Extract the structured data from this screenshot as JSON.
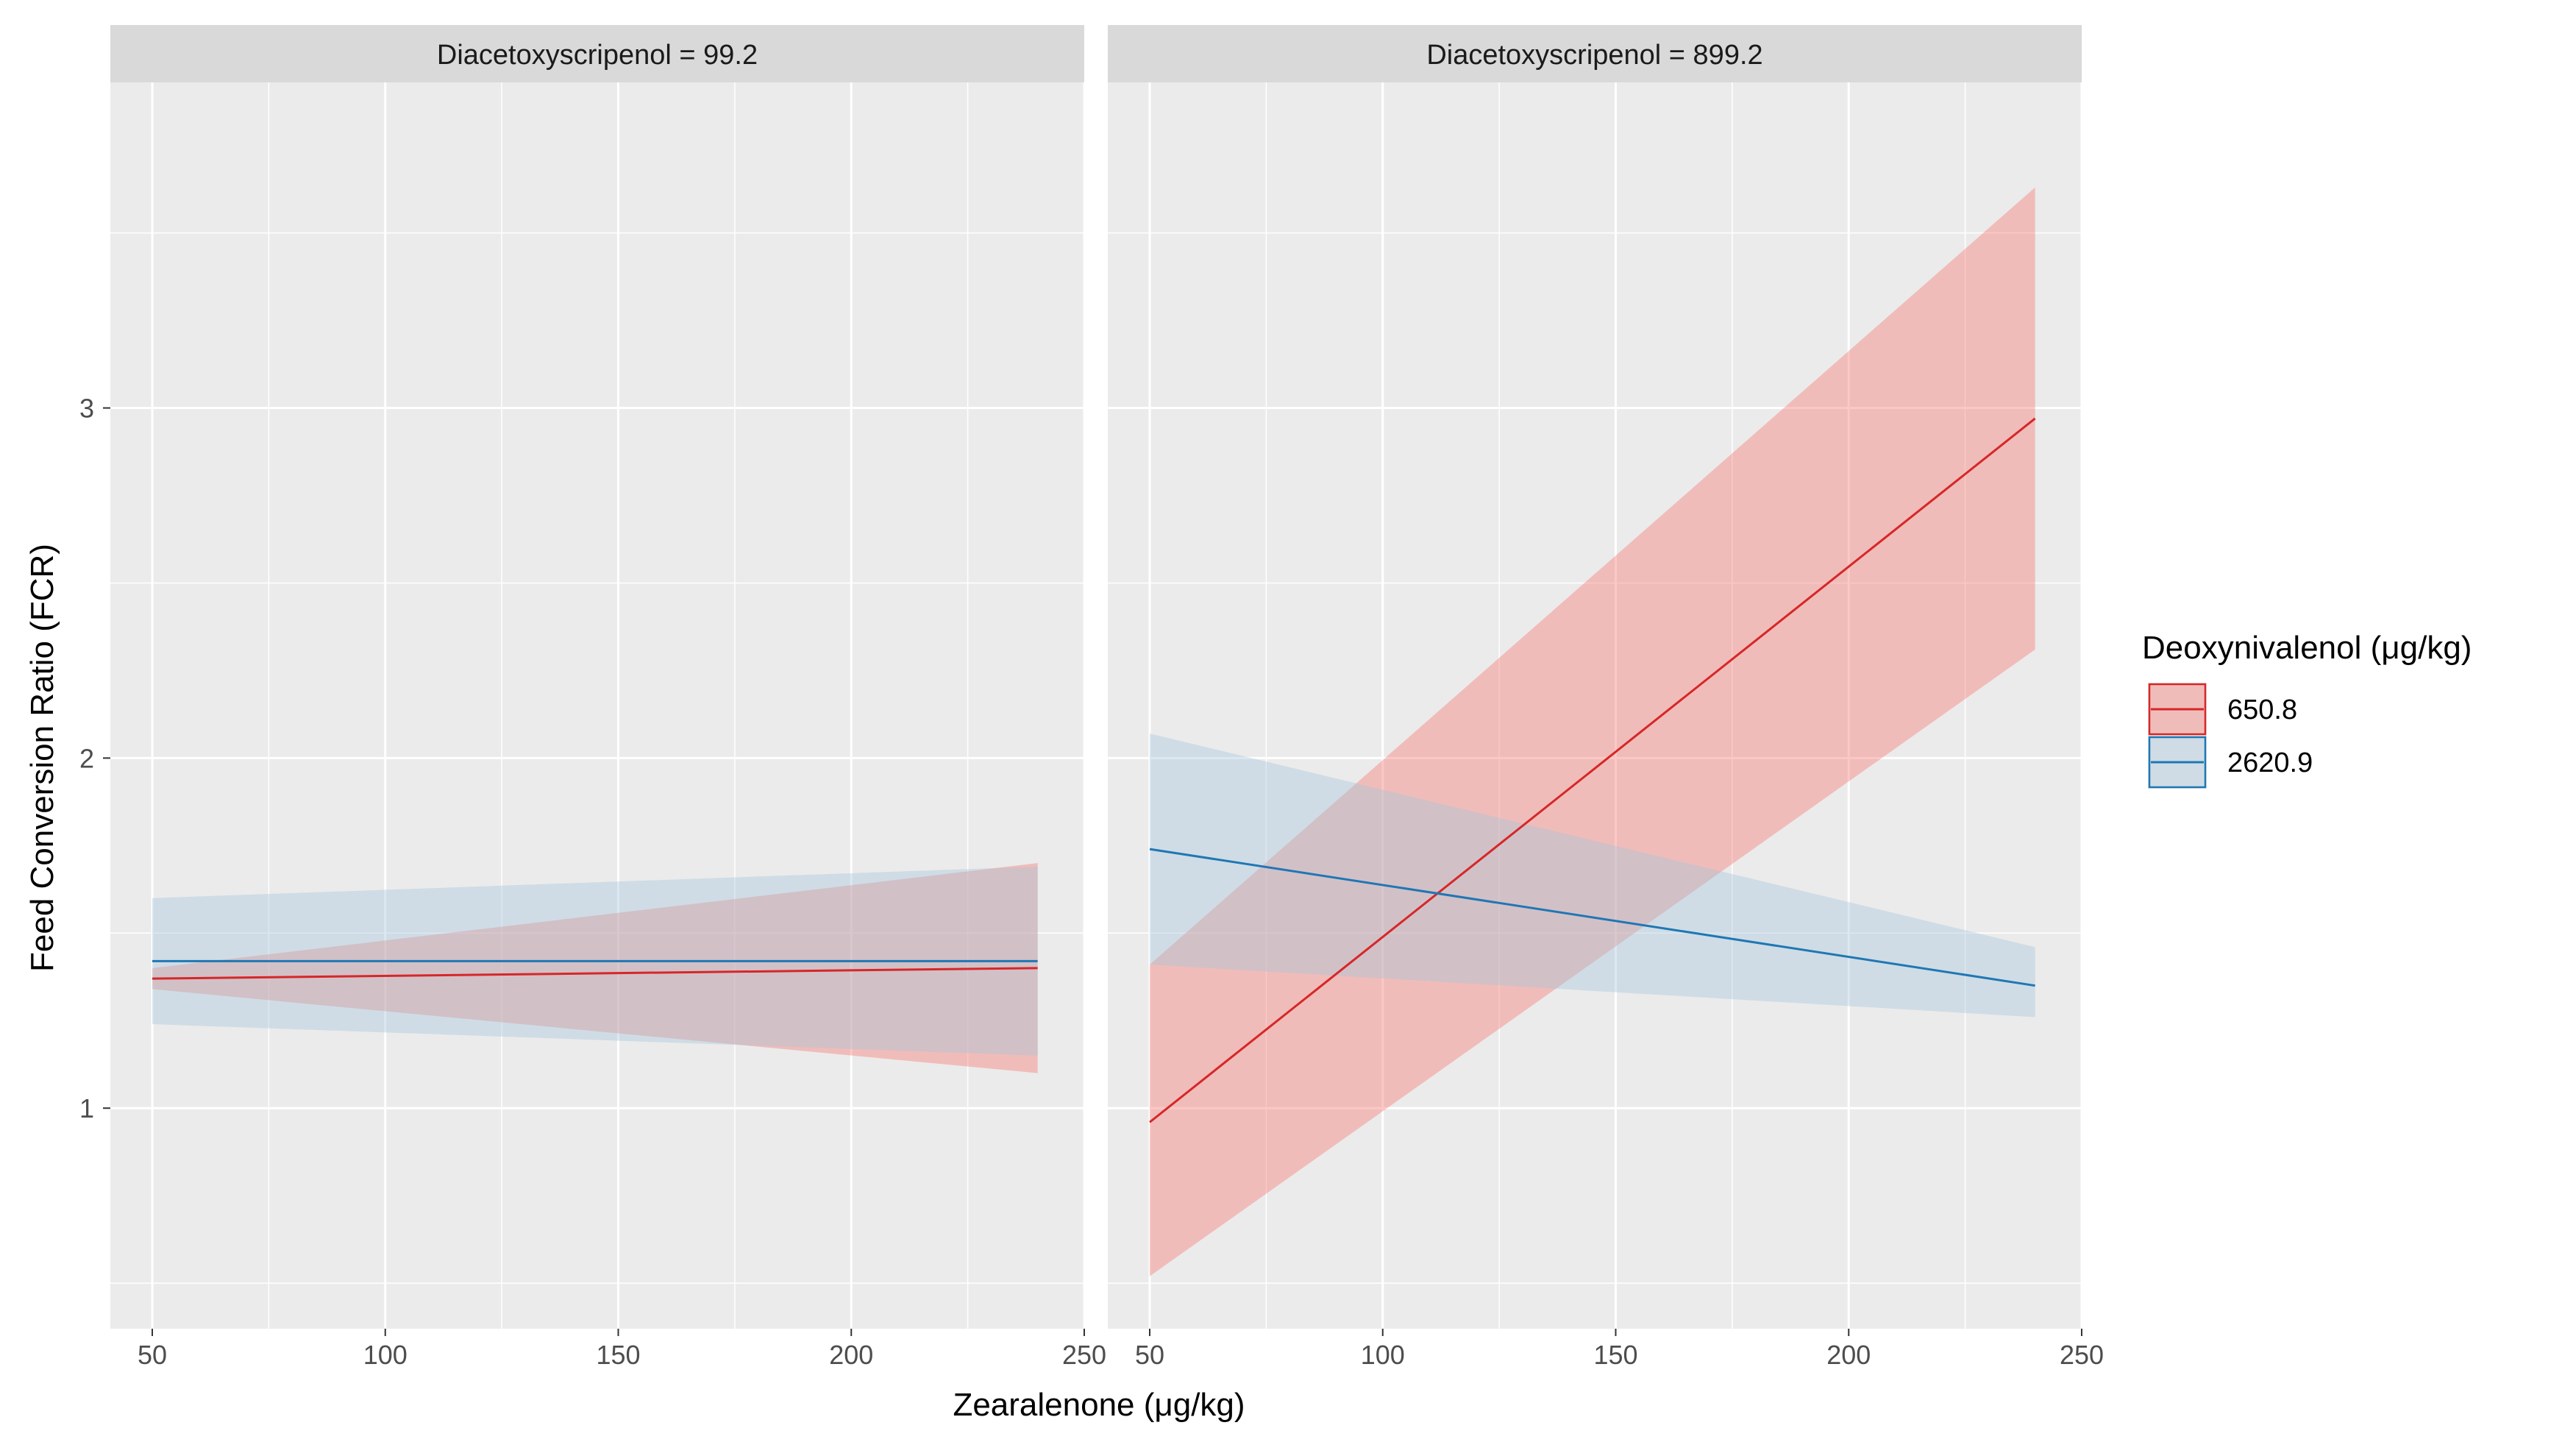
{
  "chart_data": {
    "type": "line",
    "xlabel": "Zearalenone (μg/kg)",
    "ylabel": "Feed Conversion Ratio (FCR)",
    "xlim": [
      41,
      250
    ],
    "ylim": [
      0.37,
      3.93
    ],
    "x_ticks": [
      50,
      100,
      150,
      200,
      250
    ],
    "x_tick_labels": [
      "50",
      "100",
      "150",
      "200",
      "250"
    ],
    "y_ticks": [
      1,
      2,
      3
    ],
    "y_tick_labels": [
      "1",
      "2",
      "3"
    ],
    "legend": {
      "title": "Deoxynivalenol (μg/kg)",
      "placement": "right",
      "entries": [
        {
          "label": "650.8",
          "color": "#d62728",
          "fill": "#f8766d"
        },
        {
          "label": "2620.9",
          "color": "#1f77b4",
          "fill": "#a6c6db"
        }
      ]
    },
    "panels": [
      {
        "title": "Diacetoxyscripenol = 99.2",
        "series": [
          {
            "name": "650.8",
            "x": [
              50,
              240
            ],
            "y": [
              1.37,
              1.4
            ],
            "lower": [
              1.34,
              1.1
            ],
            "upper": [
              1.4,
              1.7
            ]
          },
          {
            "name": "2620.9",
            "x": [
              50,
              240
            ],
            "y": [
              1.42,
              1.42
            ],
            "lower": [
              1.24,
              1.15
            ],
            "upper": [
              1.6,
              1.69
            ]
          }
        ]
      },
      {
        "title": "Diacetoxyscripenol = 899.2",
        "series": [
          {
            "name": "650.8",
            "x": [
              50,
              240
            ],
            "y": [
              0.96,
              2.97
            ],
            "lower": [
              0.52,
              2.31
            ],
            "upper": [
              1.41,
              3.63
            ]
          },
          {
            "name": "2620.9",
            "x": [
              50,
              240
            ],
            "y": [
              1.74,
              1.35
            ],
            "lower": [
              1.41,
              1.26
            ],
            "upper": [
              2.07,
              1.46
            ]
          }
        ]
      }
    ]
  }
}
